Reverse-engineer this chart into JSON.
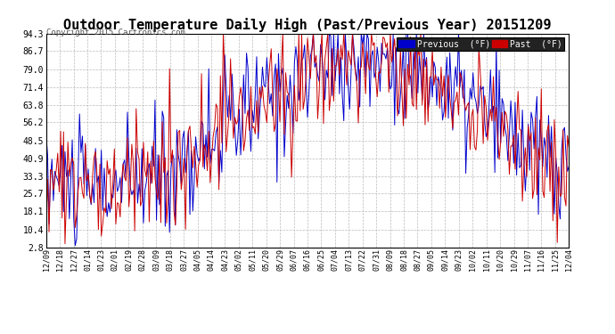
{
  "title": "Outdoor Temperature Daily High (Past/Previous Year) 20151209",
  "copyright": "Copyright 2015 Cartronics.com",
  "ylabel_values": [
    2.8,
    10.4,
    18.1,
    25.7,
    33.3,
    40.9,
    48.5,
    56.2,
    63.8,
    71.4,
    79.0,
    86.7,
    94.3
  ],
  "x_tick_labels": [
    "12/09",
    "12/18",
    "12/27",
    "01/14",
    "01/23",
    "02/01",
    "02/19",
    "02/28",
    "03/09",
    "03/18",
    "03/27",
    "04/05",
    "04/14",
    "04/23",
    "05/02",
    "05/11",
    "05/20",
    "05/29",
    "06/07",
    "06/16",
    "06/25",
    "07/04",
    "07/13",
    "07/22",
    "07/31",
    "08/09",
    "08/18",
    "08/27",
    "09/05",
    "09/14",
    "09/23",
    "10/02",
    "10/11",
    "10/20",
    "10/29",
    "11/07",
    "11/16",
    "11/25",
    "12/04"
  ],
  "background_color": "#ffffff",
  "grid_color": "#bbbbbb",
  "previous_color": "#0000cc",
  "past_color": "#cc0000",
  "title_fontsize": 11,
  "legend_previous_label": "Previous  (°F)",
  "legend_past_label": "Past  (°F)",
  "ylim_min": 2.8,
  "ylim_max": 94.3,
  "figwidth": 6.9,
  "figheight": 3.75,
  "dpi": 100
}
